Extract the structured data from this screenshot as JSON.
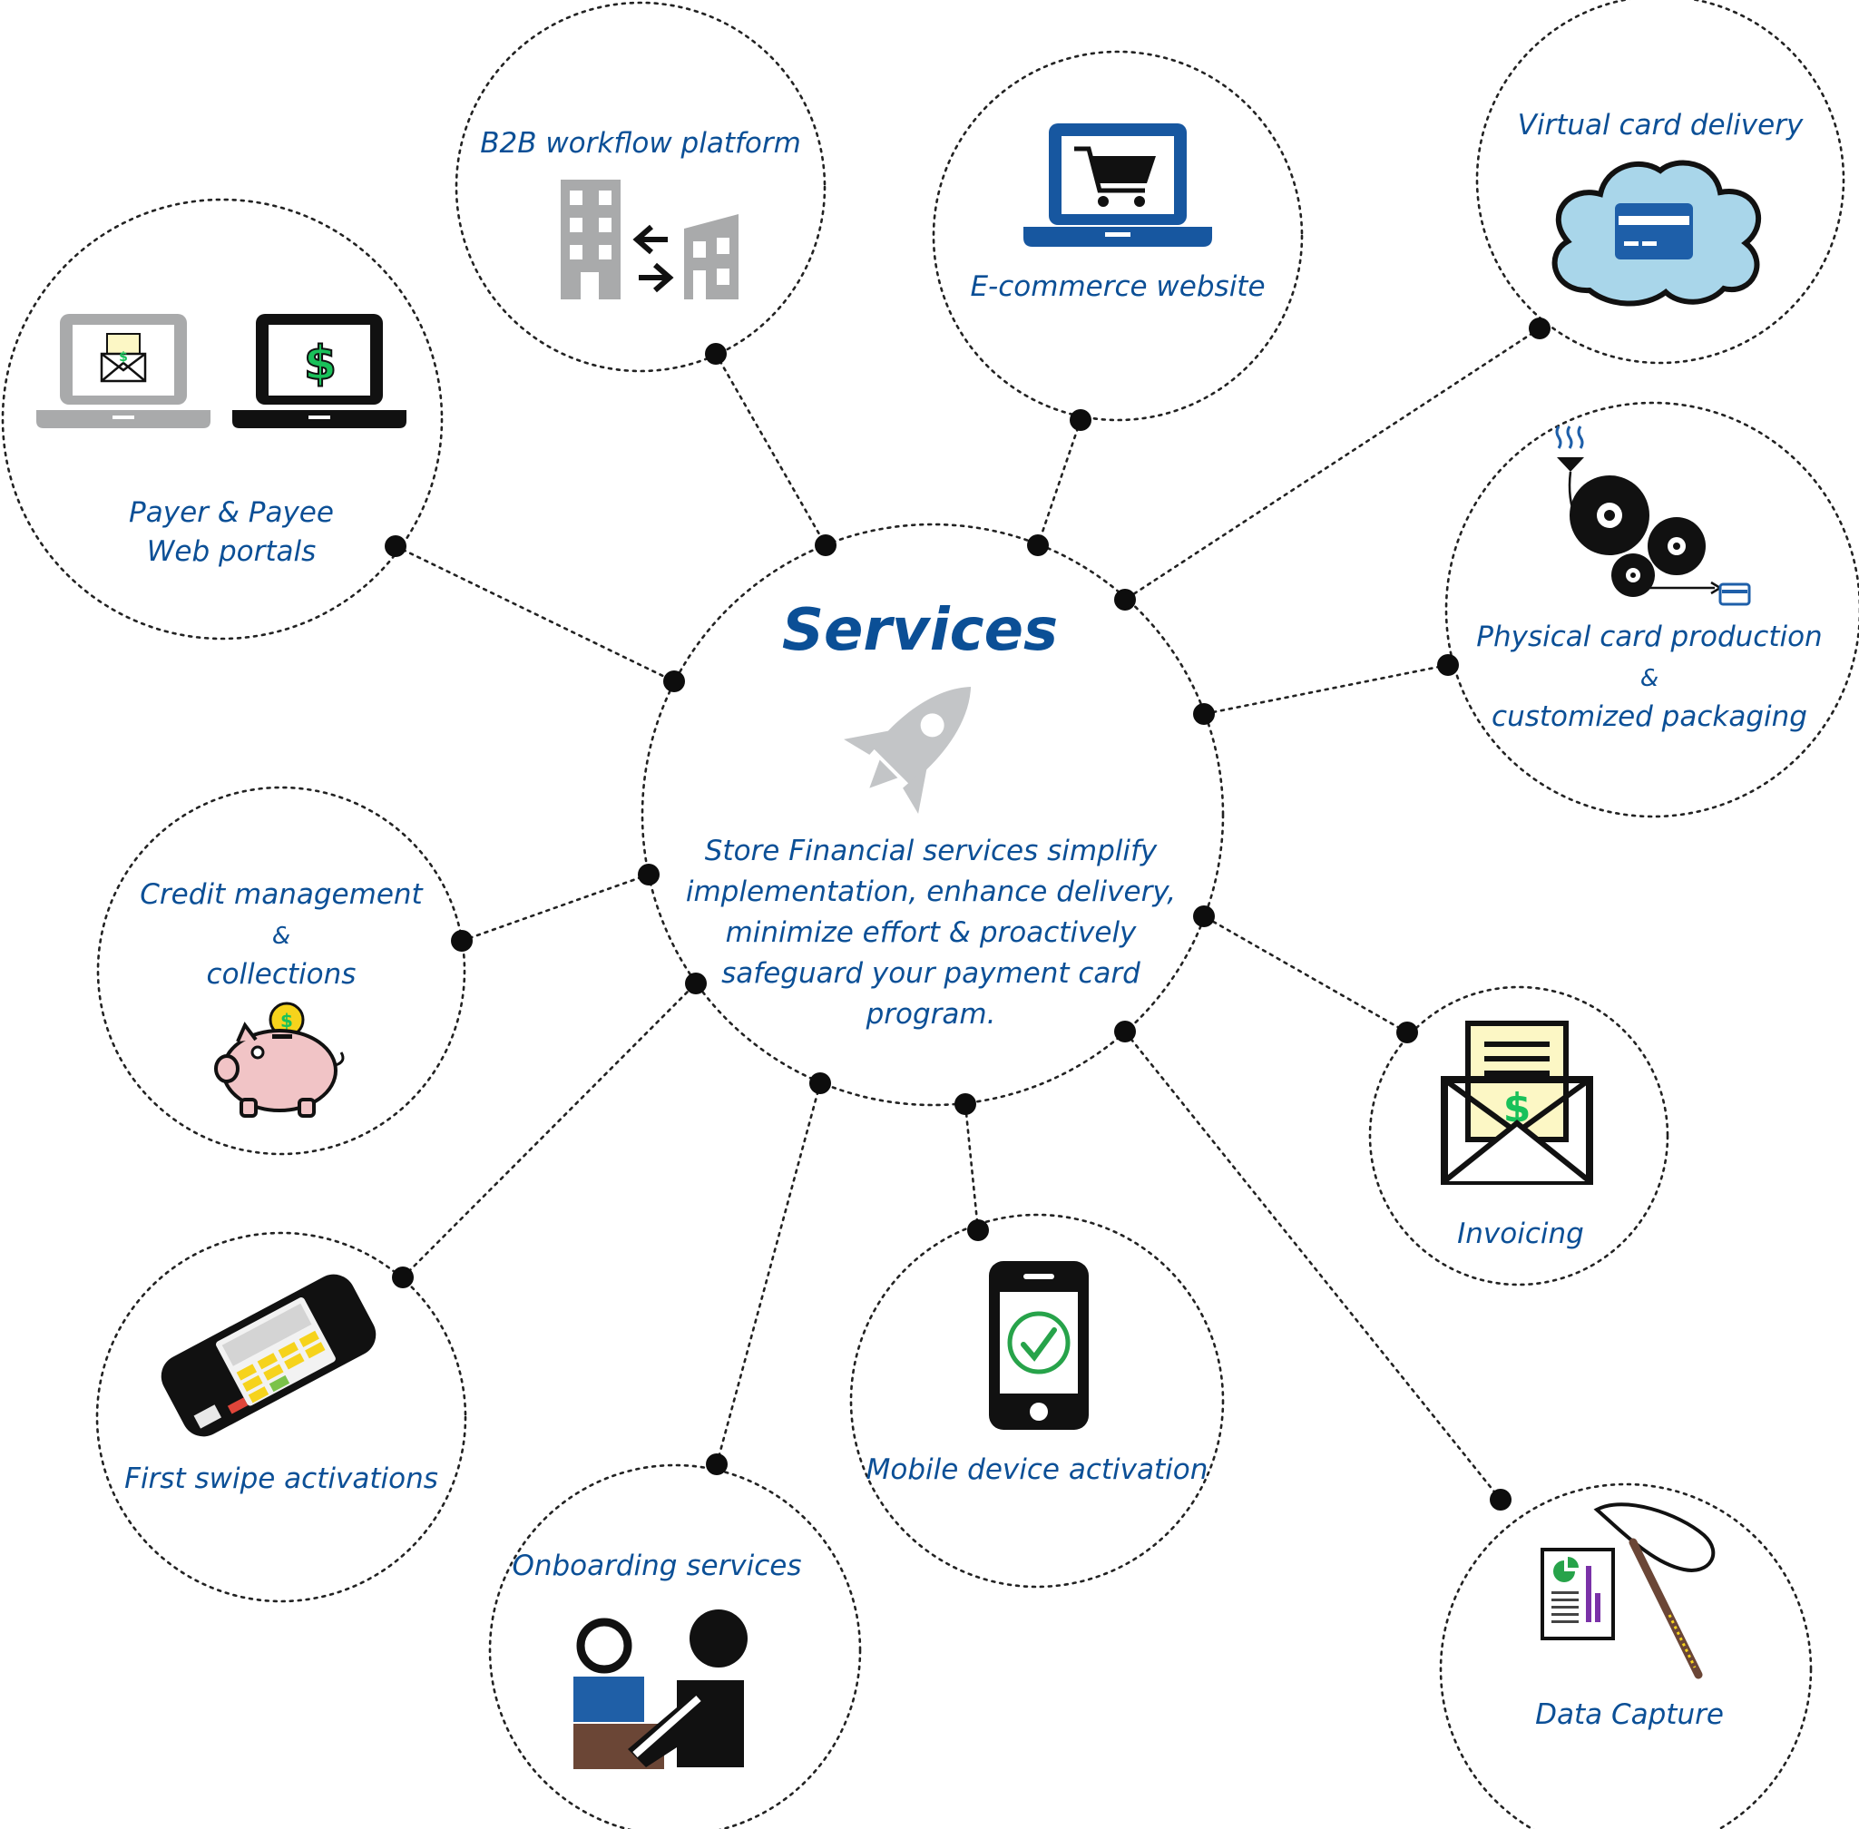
{
  "center": {
    "title": "Services",
    "icon": "rocket-icon",
    "description_lines": [
      "Store Financial services simplify",
      "implementation, enhance delivery,",
      "minimize effort & proactively",
      "safeguard your payment card",
      "program."
    ]
  },
  "services": [
    {
      "id": "web-portals",
      "label_lines": [
        "Payer & Payee",
        "Web portals"
      ],
      "icon": "laptops-icon"
    },
    {
      "id": "b2b",
      "label_lines": [
        "B2B workflow platform"
      ],
      "icon": "buildings-exchange-icon"
    },
    {
      "id": "ecommerce",
      "label_lines": [
        "E-commerce website"
      ],
      "icon": "laptop-cart-icon"
    },
    {
      "id": "virtual-card",
      "label_lines": [
        "Virtual card delivery"
      ],
      "icon": "cloud-card-icon"
    },
    {
      "id": "physical-card",
      "label_lines": [
        "Physical card production",
        "&",
        "customized packaging"
      ],
      "icon": "card-production-rollers-icon"
    },
    {
      "id": "credit",
      "label_lines": [
        "Credit management",
        "&",
        "collections"
      ],
      "icon": "piggy-bank-icon"
    },
    {
      "id": "invoicing",
      "label_lines": [
        "Invoicing"
      ],
      "icon": "envelope-invoice-icon"
    },
    {
      "id": "first-swipe",
      "label_lines": [
        "First swipe activations"
      ],
      "icon": "card-terminal-icon"
    },
    {
      "id": "mobile",
      "label_lines": [
        "Mobile device activation"
      ],
      "icon": "phone-check-icon"
    },
    {
      "id": "onboarding",
      "label_lines": [
        "Onboarding services"
      ],
      "icon": "people-meeting-icon"
    },
    {
      "id": "data-capture",
      "label_lines": [
        "Data Capture"
      ],
      "icon": "report-net-icon"
    }
  ],
  "colors": {
    "label_blue": "#0b4f96",
    "dark": "#111111",
    "icon_gray": "#a9aaab",
    "cloud_fill": "#a9d6ea",
    "card_blue": "#1e5fa9",
    "money_green": "#19c15a",
    "pig_pink": "#f1c4c6",
    "coin_yellow": "#f6d31c",
    "invoice_paper": "#fcf7c5",
    "check_green": "#27a34a",
    "people_blue": "#1f5fa7",
    "desk_brown": "#6b4636",
    "chart_purple": "#7a32a8"
  }
}
